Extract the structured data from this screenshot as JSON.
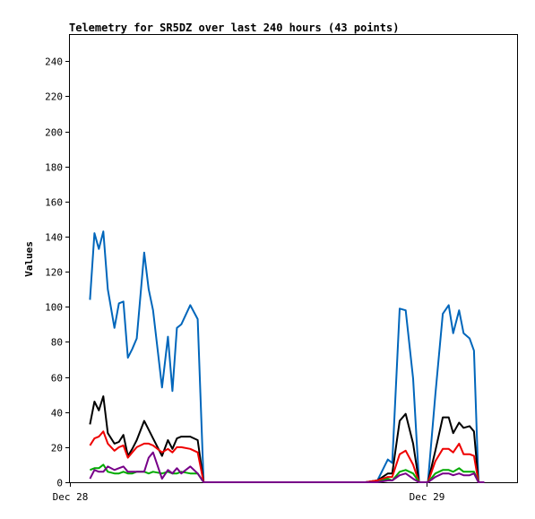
{
  "chart_data": {
    "type": "line",
    "title": "Telemetry for SR5DZ over last 240 hours (43 points)",
    "xlabel": "",
    "ylabel": "Values",
    "ylim": [
      0,
      255
    ],
    "y_ticks": [
      0,
      20,
      40,
      60,
      80,
      100,
      120,
      140,
      160,
      180,
      200,
      220,
      240
    ],
    "x_ticks": [
      {
        "label": "Dec 28",
        "hour": 0
      },
      {
        "label": "Dec 29",
        "hour": 24
      }
    ],
    "xlim_hours": [
      0,
      30.1
    ],
    "grid": false,
    "legend": "none",
    "x_hours": [
      1.35,
      1.65,
      1.95,
      2.25,
      2.55,
      3.0,
      3.3,
      3.6,
      3.9,
      4.2,
      4.5,
      5.0,
      5.3,
      5.6,
      6.2,
      6.6,
      6.9,
      7.2,
      7.5,
      8.1,
      8.6,
      9.0,
      9.3,
      9.8,
      19.9,
      20.7,
      21.4,
      21.7,
      22.2,
      22.6,
      23.1,
      23.5,
      24.1,
      24.6,
      25.1,
      25.5,
      25.8,
      26.2,
      26.5,
      26.9,
      27.2,
      27.5,
      27.9
    ],
    "series": [
      {
        "color": "#0066bb",
        "values": [
          104,
          142,
          133,
          143,
          110,
          88,
          102,
          103,
          71,
          76,
          82,
          131,
          110,
          98,
          54,
          83,
          52,
          88,
          90,
          101,
          93,
          0,
          0,
          0,
          0,
          1,
          13,
          11,
          99,
          98,
          59,
          0,
          0,
          50,
          96,
          101,
          85,
          98,
          85,
          82,
          75,
          0,
          0
        ]
      },
      {
        "color": "#000000",
        "values": [
          33,
          46,
          41,
          49,
          28,
          22,
          23,
          27,
          15,
          19,
          24,
          35,
          30,
          25,
          15,
          24,
          19,
          25,
          26,
          26,
          24,
          0,
          0,
          0,
          0,
          1,
          5,
          5,
          35,
          39,
          22,
          0,
          0,
          18,
          37,
          37,
          28,
          34,
          31,
          32,
          29,
          0,
          0
        ]
      },
      {
        "color": "#ee0000",
        "values": [
          21,
          25,
          26,
          29,
          22,
          18,
          20,
          21,
          14,
          17,
          20,
          22,
          22,
          21,
          17,
          19,
          17,
          20,
          20,
          19,
          17,
          0,
          0,
          0,
          0,
          1,
          3,
          3,
          16,
          18,
          10,
          0,
          0,
          12,
          19,
          19,
          17,
          22,
          16,
          16,
          15,
          0,
          0
        ]
      },
      {
        "color": "#00aa00",
        "values": [
          7,
          8,
          8,
          10,
          6,
          5,
          5,
          6,
          5,
          5,
          6,
          6,
          5,
          6,
          5,
          6,
          5,
          5,
          6,
          5,
          5,
          0,
          0,
          0,
          0,
          0,
          2,
          1,
          6,
          7,
          5,
          0,
          0,
          5,
          7,
          7,
          6,
          8,
          6,
          6,
          6,
          0,
          0
        ]
      },
      {
        "color": "#770088",
        "values": [
          2,
          7,
          6,
          6,
          9,
          7,
          8,
          9,
          6,
          6,
          6,
          6,
          14,
          17,
          2,
          7,
          5,
          8,
          5,
          9,
          5,
          0,
          0,
          0,
          0,
          0,
          1,
          1,
          4,
          5,
          2,
          0,
          0,
          3,
          5,
          5,
          4,
          5,
          4,
          4,
          5,
          0,
          0
        ]
      }
    ]
  }
}
